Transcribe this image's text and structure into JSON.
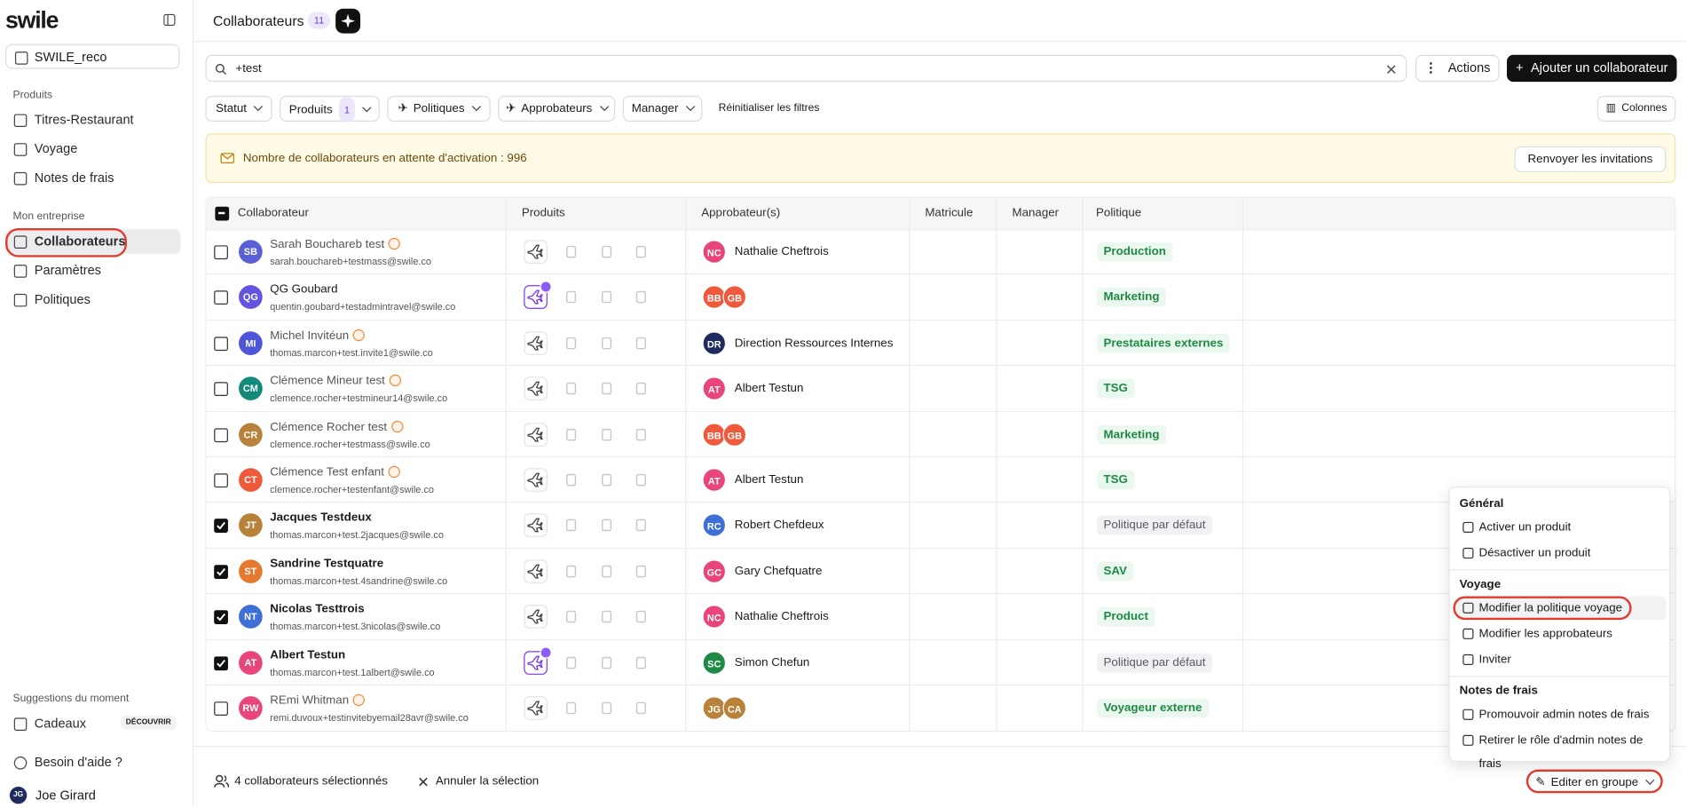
{
  "sidebar": {
    "logo": "swile",
    "org": "SWILE_reco",
    "sections": [
      {
        "title": "Produits",
        "items": [
          "Titres-Restaurant",
          "Voyage",
          "Notes de frais"
        ]
      },
      {
        "title": "Mon entreprise",
        "items": [
          "Collaborateurs",
          "Paramètres",
          "Politiques"
        ]
      }
    ],
    "suggestions": {
      "title": "Suggestions du moment",
      "item": "Cadeaux",
      "badge": "DÉCOUVRIR"
    },
    "help": "Besoin d'aide ?",
    "user": {
      "initials": "JG",
      "name": "Joe Girard"
    }
  },
  "header": {
    "title": "Collaborateurs",
    "count": "11"
  },
  "toolbar": {
    "search": "+test",
    "actions": "Actions",
    "add": "Ajouter un collaborateur"
  },
  "filters": {
    "statut": "Statut",
    "produits": "Produits",
    "produits_count": "1",
    "politiques": "Politiques",
    "approbateurs": "Approbateurs",
    "manager": "Manager",
    "reset": "Réinitialiser les filtres",
    "columns": "Colonnes"
  },
  "banner": {
    "text": "Nombre de collaborateurs en attente d'activation : 996",
    "button": "Renvoyer les invitations"
  },
  "table": {
    "columns": [
      "Collaborateur",
      "Produits",
      "Approbateur(s)",
      "Matricule",
      "Manager",
      "Politique"
    ],
    "rows": [
      {
        "initials": "SB",
        "avatar_color": "#5a5fd6",
        "name": "Sarah Bouchareb test",
        "email": "sarah.bouchareb+testmass@swile.co",
        "pending": true,
        "checked": false,
        "travel_active": false,
        "approvers": [
          {
            "initials": "NC",
            "color": "#e8457a"
          }
        ],
        "approver_name": "Nathalie Cheftrois",
        "policy": "Production",
        "policy_color": "#1f8a45"
      },
      {
        "initials": "QG",
        "avatar_color": "#6254e0",
        "name": "QG Goubard",
        "email": "quentin.goubard+testadmintravel@swile.co",
        "pending": false,
        "checked": false,
        "travel_active": true,
        "approvers": [
          {
            "initials": "BB",
            "color": "#ef5a3c"
          },
          {
            "initials": "GB",
            "color": "#ef5a3c"
          }
        ],
        "approver_name": null,
        "policy": "Marketing",
        "policy_color": "#1f8a45"
      },
      {
        "initials": "MI",
        "avatar_color": "#4d56d8",
        "name": "Michel Invitéun",
        "email": "thomas.marcon+test.invite1@swile.co",
        "pending": true,
        "checked": false,
        "travel_active": false,
        "approvers": [
          {
            "initials": "DR",
            "color": "#1d2b5e"
          }
        ],
        "approver_name": "Direction Ressources Internes",
        "policy": "Prestataires externes",
        "policy_color": "#1f8a45"
      },
      {
        "initials": "CM",
        "avatar_color": "#12897a",
        "name": "Clémence Mineur test",
        "email": "clemence.rocher+testmineur14@swile.co",
        "pending": true,
        "checked": false,
        "travel_active": false,
        "approvers": [
          {
            "initials": "AT",
            "color": "#e8457a"
          }
        ],
        "approver_name": "Albert Testun",
        "policy": "TSG",
        "policy_color": "#1f8a45"
      },
      {
        "initials": "CR",
        "avatar_color": "#b8823a",
        "name": "Clémence Rocher test",
        "email": "clemence.rocher+testmass@swile.co",
        "pending": true,
        "checked": false,
        "travel_active": false,
        "approvers": [
          {
            "initials": "BB",
            "color": "#ef5a3c"
          },
          {
            "initials": "GB",
            "color": "#ef5a3c"
          }
        ],
        "approver_name": null,
        "policy": "Marketing",
        "policy_color": "#1f8a45"
      },
      {
        "initials": "CT",
        "avatar_color": "#ef5a3c",
        "name": "Clémence Test enfant",
        "email": "clemence.rocher+testenfant@swile.co",
        "pending": true,
        "checked": false,
        "travel_active": false,
        "approvers": [
          {
            "initials": "AT",
            "color": "#e8457a"
          }
        ],
        "approver_name": "Albert Testun",
        "policy": "TSG",
        "policy_color": "#1f8a45"
      },
      {
        "initials": "JT",
        "avatar_color": "#b8823a",
        "name": "Jacques Testdeux",
        "email": "thomas.marcon+test.2jacques@swile.co",
        "pending": false,
        "checked": true,
        "travel_active": false,
        "approvers": [
          {
            "initials": "RC",
            "color": "#3d6fd6"
          }
        ],
        "approver_name": "Robert Chefdeux",
        "policy": "Politique par défaut",
        "policy_color": "#555a64"
      },
      {
        "initials": "ST",
        "avatar_color": "#e57a2e",
        "name": "Sandrine Testquatre",
        "email": "thomas.marcon+test.4sandrine@swile.co",
        "pending": false,
        "checked": true,
        "travel_active": false,
        "approvers": [
          {
            "initials": "GC",
            "color": "#e8457a"
          }
        ],
        "approver_name": "Gary Chefquatre",
        "policy": "SAV",
        "policy_color": "#1f8a45"
      },
      {
        "initials": "NT",
        "avatar_color": "#3d6fd6",
        "name": "Nicolas Testtrois",
        "email": "thomas.marcon+test.3nicolas@swile.co",
        "pending": false,
        "checked": true,
        "travel_active": false,
        "approvers": [
          {
            "initials": "NC",
            "color": "#e8457a"
          }
        ],
        "approver_name": "Nathalie Cheftrois",
        "policy": "Product",
        "policy_color": "#1f8a45"
      },
      {
        "initials": "AT",
        "avatar_color": "#e8457a",
        "name": "Albert Testun",
        "email": "thomas.marcon+test.1albert@swile.co",
        "pending": false,
        "checked": true,
        "travel_active": true,
        "approvers": [
          {
            "initials": "SC",
            "color": "#1f8a45"
          }
        ],
        "approver_name": "Simon Chefun",
        "policy": "Politique par défaut",
        "policy_color": "#555a64"
      },
      {
        "initials": "RW",
        "avatar_color": "#e8457a",
        "name": "REmi Whitman",
        "email": "remi.duvoux+testinvitebyemail28avr@swile.co",
        "pending": true,
        "checked": false,
        "travel_active": false,
        "approvers": [
          {
            "initials": "JG",
            "color": "#b8823a"
          },
          {
            "initials": "CA",
            "color": "#b8823a"
          }
        ],
        "approver_name": null,
        "policy": "Voyageur externe",
        "policy_color": "#1f8a45"
      }
    ]
  },
  "menu": {
    "sections": [
      {
        "title": "Général",
        "items": [
          "Activer un produit",
          "Désactiver un produit"
        ]
      },
      {
        "title": "Voyage",
        "items": [
          "Modifier la politique voyage",
          "Modifier les approbateurs",
          "Inviter"
        ]
      },
      {
        "title": "Notes de frais",
        "items": [
          "Promouvoir admin notes de frais",
          "Retirer le rôle d'admin notes de frais"
        ]
      }
    ]
  },
  "bottom_bar": {
    "selected": "4 collaborateurs sélectionnés",
    "cancel": "Annuler la sélection",
    "edit": "Editer en groupe"
  }
}
